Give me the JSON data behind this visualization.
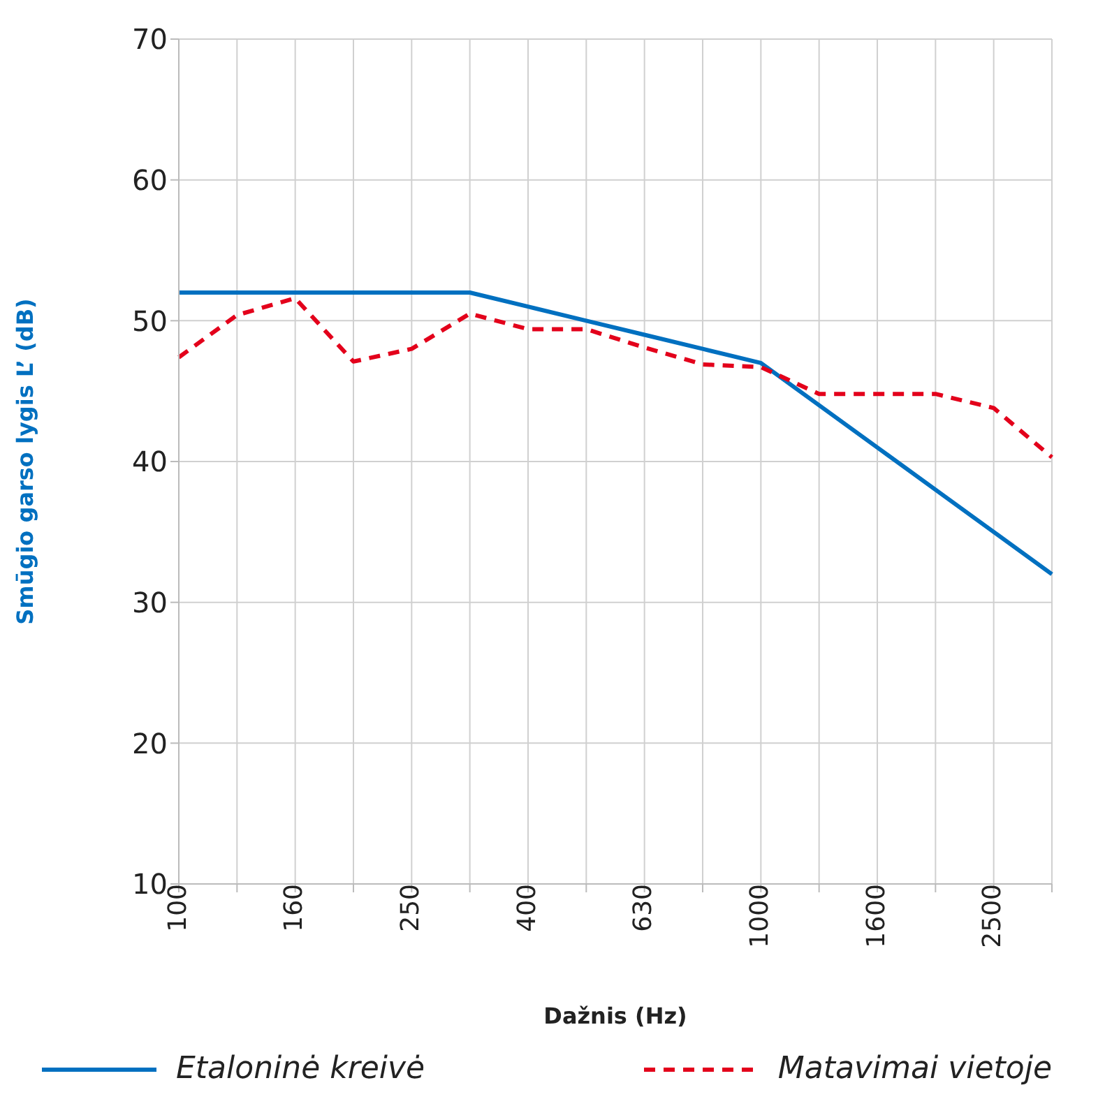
{
  "chart_data": {
    "type": "line",
    "xlabel": "Dažnis (Hz)",
    "ylabel": "Smūgio garso lygis L’ (dB)",
    "categories": [
      "100",
      null,
      "160",
      null,
      "250",
      null,
      "400",
      null,
      "630",
      null,
      "1000",
      null,
      "1600",
      null,
      "2500",
      null
    ],
    "ylim": [
      10,
      70
    ],
    "yticks": [
      10,
      20,
      30,
      40,
      50,
      60,
      70
    ],
    "grid": true,
    "legend": "bottom",
    "marker": "none",
    "series": [
      {
        "name": "Etaloninė kreivė",
        "color": "#0070c0",
        "line_style": "solid",
        "values": [
          52,
          52,
          52,
          52,
          52,
          52,
          51,
          50,
          49,
          48,
          47,
          44,
          41,
          38,
          35,
          32
        ]
      },
      {
        "name": "Matavimai vietoje",
        "color": "#e3001b",
        "line_style": "dashed",
        "values": [
          47.4,
          50.4,
          51.6,
          47.1,
          48.0,
          50.5,
          49.4,
          49.4,
          48.1,
          46.9,
          46.7,
          44.8,
          44.8,
          44.8,
          43.8,
          40.3
        ]
      }
    ]
  }
}
